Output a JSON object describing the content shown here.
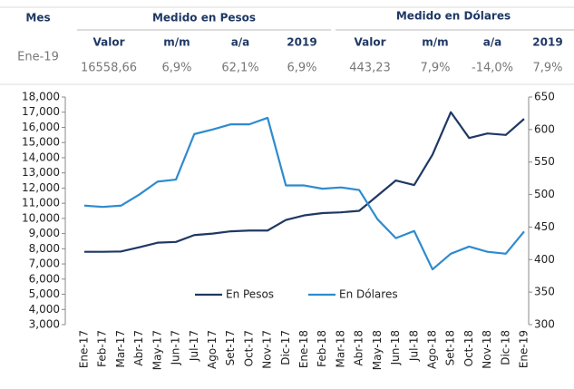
{
  "table": {
    "header": [
      "Mes",
      "Medido en Pesos",
      "Medido en Dólares"
    ],
    "subheader": [
      "Valor",
      "m/m",
      "a/a",
      "2019",
      "Valor",
      "m/m",
      "a/a",
      "2019"
    ],
    "rows": [
      [
        "Ene-19",
        "16558,66",
        "6,9%",
        "62,1%",
        "6,9%",
        "443,23",
        "7,9%",
        "-14,0%",
        "7,9%"
      ]
    ]
  },
  "chart_data": {
    "type": "line",
    "categories": [
      "Ene-17",
      "Feb-17",
      "Mar-17",
      "Abr-17",
      "May-17",
      "Jun-17",
      "Jul-17",
      "Ago-17",
      "Set-17",
      "Oct-17",
      "Nov-17",
      "Dic-17",
      "Ene-18",
      "Feb-18",
      "Mar-18",
      "Abr-18",
      "May-18",
      "Jun-18",
      "Jul-18",
      "Ago-18",
      "Set-18",
      "Oct-18",
      "Nov-18",
      "Dic-18",
      "Ene-19"
    ],
    "series": [
      {
        "name": "En Pesos",
        "color": "#1f3864",
        "axis": "y",
        "values": [
          7800,
          7800,
          7820,
          8100,
          8400,
          8450,
          8900,
          9000,
          9150,
          9200,
          9200,
          9900,
          10200,
          10350,
          10400,
          10500,
          11500,
          12500,
          12200,
          14200,
          17000,
          15300,
          15600,
          15500,
          16558.66
        ]
      },
      {
        "name": "En Dólares",
        "color": "#2e8bcf",
        "axis": "y2",
        "values": [
          483,
          481,
          483,
          500,
          520,
          523,
          593,
          600,
          608,
          608,
          618,
          514,
          514,
          509,
          511,
          507,
          462,
          433,
          444,
          385,
          409,
          420,
          412,
          409,
          443.23
        ]
      }
    ],
    "ylim": [
      3000,
      18000
    ],
    "yticks": [
      {
        "value": 3000,
        "label": "3,000"
      },
      {
        "value": 4000,
        "label": "4,000"
      },
      {
        "value": 5000,
        "label": "5,000"
      },
      {
        "value": 6000,
        "label": "6,000"
      },
      {
        "value": 7000,
        "label": "7,000"
      },
      {
        "value": 8000,
        "label": "8,000"
      },
      {
        "value": 9000,
        "label": "9,000"
      },
      {
        "value": 10000,
        "label": "10,000"
      },
      {
        "value": 11000,
        "label": "11,000"
      },
      {
        "value": 12000,
        "label": "12,000"
      },
      {
        "value": 13000,
        "label": "13,000"
      },
      {
        "value": 14000,
        "label": "14,000"
      },
      {
        "value": 15000,
        "label": "15,000"
      },
      {
        "value": 16000,
        "label": "16,000"
      },
      {
        "value": 17000,
        "label": "17,000"
      },
      {
        "value": 18000,
        "label": "18,000"
      }
    ],
    "y2lim": [
      300,
      650
    ],
    "y2ticks": [
      300,
      350,
      400,
      450,
      500,
      550,
      600,
      650
    ],
    "legend": "center"
  }
}
